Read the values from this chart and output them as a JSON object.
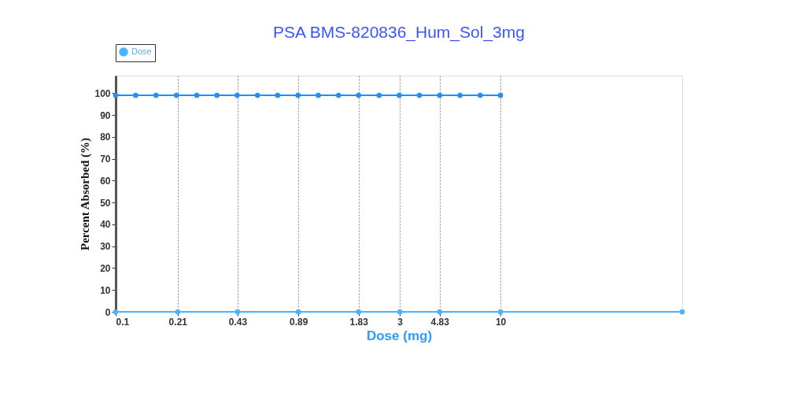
{
  "chart_data": {
    "type": "line",
    "title": "PSA BMS-820836_Hum_Sol_3mg",
    "xlabel": "Dose (mg)",
    "ylabel": "Percent Absorbed (%)",
    "series": [
      {
        "color": "#1e90ff",
        "x": [
          0.1,
          0.127,
          0.162,
          0.207,
          0.264,
          0.336,
          0.428,
          0.546,
          0.695,
          0.886,
          1.13,
          1.44,
          1.83,
          2.34,
          2.98,
          3.79,
          4.83,
          6.16,
          7.85,
          10
        ],
        "values": [
          99,
          99,
          99,
          99,
          99,
          99,
          99,
          99,
          99,
          99,
          99,
          99,
          99,
          99,
          99,
          99,
          99,
          99,
          99,
          99
        ]
      },
      {
        "name": "Dose",
        "color": "#4db3ff",
        "x": [
          0.1,
          0.21,
          0.43,
          0.89,
          1.83,
          3,
          4.83,
          10,
          88
        ],
        "values": [
          0,
          0,
          0,
          0,
          0,
          0,
          0,
          0,
          0
        ]
      }
    ],
    "log": "x",
    "xlim": [
      0.1,
      88
    ],
    "xticks": [
      0.1,
      0.21,
      0.43,
      0.89,
      1.83,
      3,
      4.83,
      10
    ],
    "ylim": [
      0,
      108
    ],
    "yticks": [
      0,
      10,
      20,
      30,
      40,
      50,
      60,
      70,
      80,
      90,
      100
    ],
    "grid": "x",
    "legend": "top",
    "marker": "circle",
    "line_style": "solid"
  }
}
